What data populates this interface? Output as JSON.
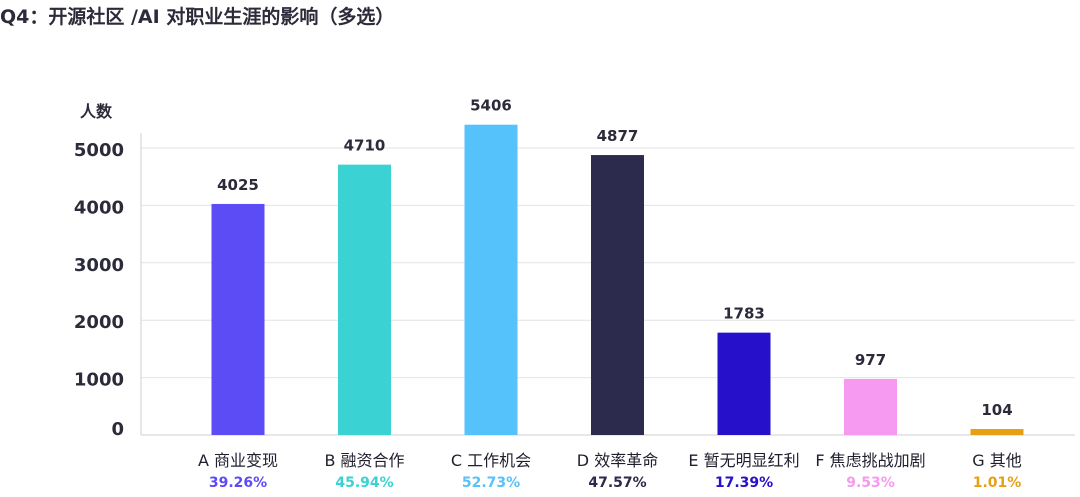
{
  "title": "Q4：开源社区 /AI 对职业生涯的影响（多选）",
  "chart_data": {
    "type": "bar",
    "ylabel": "人数",
    "ylim": [
      0,
      5600
    ],
    "yticks": [
      0,
      1000,
      2000,
      3000,
      4000,
      5000
    ],
    "grid": true,
    "categories": [
      "A 商业变现",
      "B 融资合作",
      "C 工作机会",
      "D 效率革命",
      "E 暂无明显红利",
      "F 焦虑挑战加剧",
      "G 其他"
    ],
    "values": [
      4025,
      4710,
      5406,
      4877,
      1783,
      977,
      104
    ],
    "data_labels": [
      "4025",
      "4710",
      "5406",
      "4877",
      "1783",
      "977",
      "104"
    ],
    "percentages": [
      "39.26%",
      "45.94%",
      "52.73%",
      "47.57%",
      "17.39%",
      "9.53%",
      "1.01%"
    ],
    "colors": [
      "#5b4cf5",
      "#3ad2d2",
      "#55c2fb",
      "#2c2a4d",
      "#2710c9",
      "#f59af0",
      "#e5a016"
    ]
  }
}
